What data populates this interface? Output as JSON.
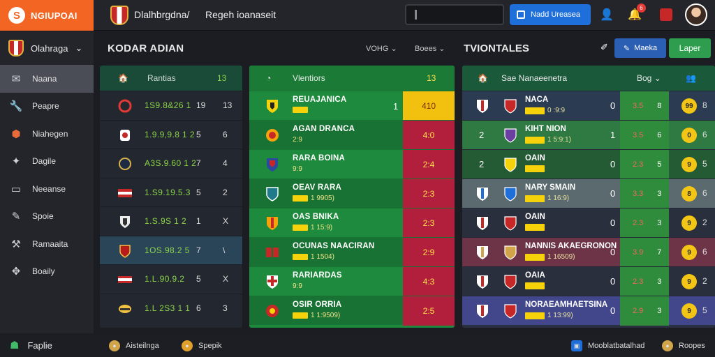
{
  "topbar": {
    "brand": "NGIUPOAI",
    "title": "Dlalhbrgdna/",
    "subtitle": "Regeh ioanaseit",
    "primary_button": "Nadd Ureasea",
    "notif_count": "6"
  },
  "sidebar": {
    "league": "Olahraga",
    "items": [
      {
        "label": "Naana",
        "icon": "mail-icon"
      },
      {
        "label": "Peapre",
        "icon": "wrench-icon"
      },
      {
        "label": "Niahegen",
        "icon": "shield-icon"
      },
      {
        "label": "Dagile",
        "icon": "puzzle-icon"
      },
      {
        "label": "Neeanse",
        "icon": "monitor-icon"
      },
      {
        "label": "Spoie",
        "icon": "pen-icon"
      },
      {
        "label": "Ramaaita",
        "icon": "tool-icon"
      },
      {
        "label": "Boaily",
        "icon": "puzzle-icon"
      }
    ],
    "bottom": "Faplie"
  },
  "section": {
    "title": "KODAR ADIAN",
    "drop1": "VOHG",
    "drop2": "Boees",
    "title2": "TVIONTALES",
    "btn_blue": "Maeka",
    "btn_green": "Laper"
  },
  "panel1": {
    "header_label": "Rantias",
    "header_count": "13",
    "rows": [
      {
        "odds": "1S9.8&26 1",
        "c1": "19",
        "c2": "13"
      },
      {
        "odds": "1.9.9,9.8 1 2",
        "c1": "5",
        "c2": "6"
      },
      {
        "odds": "A3S.9.60 1 2",
        "c1": "7",
        "c2": "4"
      },
      {
        "odds": "1.S9.19.5.3",
        "c1": "5",
        "c2": "2"
      },
      {
        "odds": "1.S.9S 1 2",
        "c1": "1",
        "c2": "X"
      },
      {
        "odds": "1OS.98.2 5",
        "c1": "7",
        "c2": "\\"
      },
      {
        "odds": "1.L.90.9.2",
        "c1": "5",
        "c2": "X"
      },
      {
        "odds": "1.L 2S3 1 1",
        "c1": "6",
        "c2": "3"
      }
    ]
  },
  "panel2": {
    "header_label": "Vlentiors",
    "header_count": "13",
    "rows": [
      {
        "name": "REUAJANICA",
        "meta": "",
        "score": "1",
        "price": "410"
      },
      {
        "name": "AGAN DRANCA",
        "meta": "2:9",
        "score": "",
        "price": "4:0"
      },
      {
        "name": "RARA BOINA",
        "meta": "9:9",
        "score": "",
        "price": "2:4"
      },
      {
        "name": "OEAV RARA",
        "meta": "1 9905)",
        "score": "",
        "price": "2:3"
      },
      {
        "name": "OAS BNIKA",
        "meta": "1 15:9)",
        "score": "",
        "price": "2:3"
      },
      {
        "name": "OCUNAS NAACIRAN",
        "meta": "1 1504)",
        "score": "",
        "price": "2:9"
      },
      {
        "name": "RARIARDAS",
        "meta": "9:9",
        "score": "",
        "price": "4:3"
      },
      {
        "name": "OSIR ORRIA",
        "meta": "1 1:9509)",
        "score": "",
        "price": "2:5"
      }
    ]
  },
  "panel3": {
    "header_label": "Sae Nanaeenetra",
    "header_right": "Bog",
    "rows": [
      {
        "lead": "",
        "name": "NACA",
        "meta": "0 :9:9",
        "score": "0",
        "o1": "3.5",
        "o2": "8",
        "pill": "99",
        "tail": "8",
        "bg": "#2b3b52"
      },
      {
        "lead": "2",
        "name": "KIHT NION",
        "meta": "1 5:9:1)",
        "score": "1",
        "o1": "3.5",
        "o2": "6",
        "pill": "0",
        "tail": "6",
        "bg": "#2e7a42"
      },
      {
        "lead": "2",
        "name": "OAIN",
        "meta": "",
        "score": "0",
        "o1": "2.3",
        "o2": "5",
        "pill": "9",
        "tail": "5",
        "bg": "#245a34"
      },
      {
        "lead": "",
        "name": "NARY SMAIN",
        "meta": "1 16:9)",
        "score": "0",
        "o1": "3.3",
        "o2": "3",
        "pill": "8",
        "tail": "6",
        "bg": "#5b6a6e"
      },
      {
        "lead": "",
        "name": "OAIN",
        "meta": "",
        "score": "0",
        "o1": "2.3",
        "o2": "3",
        "pill": "9",
        "tail": "2",
        "bg": "#2a2f3e"
      },
      {
        "lead": "",
        "name": "NANNIS AKAEGRONON",
        "meta": "1 16509)",
        "score": "0",
        "o1": "3.9",
        "o2": "7",
        "pill": "9",
        "tail": "6",
        "bg": "#6d3347"
      },
      {
        "lead": "",
        "name": "OAIA",
        "meta": "",
        "score": "0",
        "o1": "2.3",
        "o2": "3",
        "pill": "9",
        "tail": "2",
        "bg": "#2a2f3e"
      },
      {
        "lead": "",
        "name": "NORAEAMHAETSINA",
        "meta": "1 13:99)",
        "score": "0",
        "o1": "2.9",
        "o2": "3",
        "pill": "9",
        "tail": "5",
        "bg": "#42478c"
      }
    ]
  },
  "bottombar": {
    "item1": "Aisteilnga",
    "item2": "Spepik",
    "item3": "Mooblatbatalhad",
    "item4": "Roopes"
  }
}
